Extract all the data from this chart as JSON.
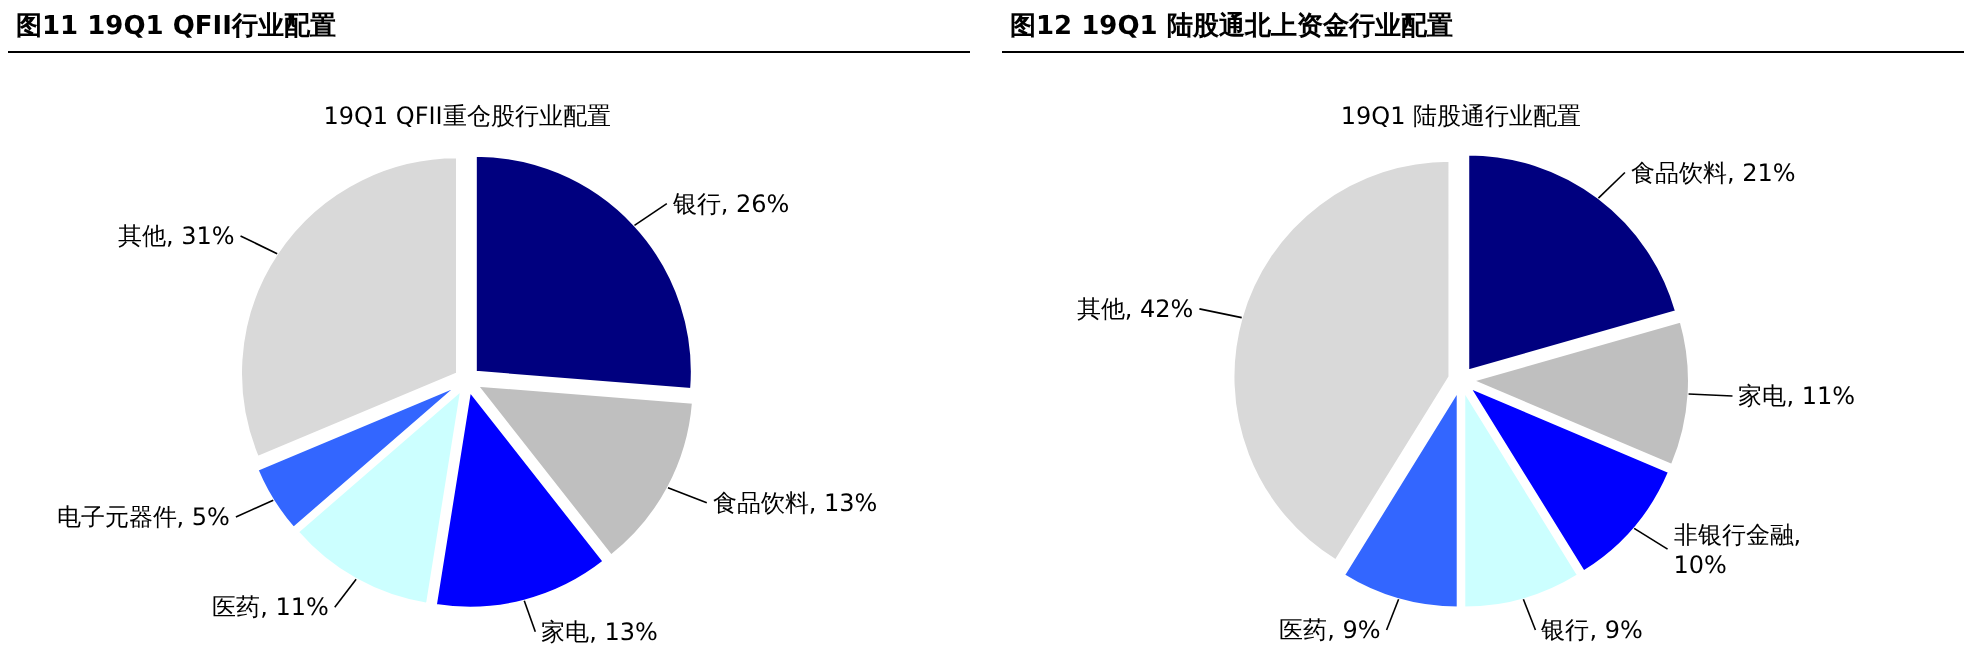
{
  "chart_data": [
    {
      "type": "pie",
      "title": "图11 19Q1 QFII行业配置",
      "subtitle": "19Q1 QFII重仓股行业配置",
      "categories": [
        "银行",
        "食品饮料",
        "家电",
        "医药",
        "电子元器件",
        "其他"
      ],
      "values": [
        26,
        13,
        13,
        11,
        5,
        31
      ],
      "value_labels": [
        ", 26%",
        ", 13%",
        ", 13%",
        ", 11%",
        ", 5%",
        ", 31%"
      ],
      "colors": [
        "#00007f",
        "#bfbfbf",
        "#0000ff",
        "#ccffff",
        "#3366ff",
        "#d9d9d9"
      ]
    },
    {
      "type": "pie",
      "title": "图12 19Q1  陆股通北上资金行业配置",
      "subtitle": "19Q1 陆股通行业配置",
      "categories": [
        "食品饮料",
        "家电",
        "非银行金融",
        "银行",
        "医药",
        "其他"
      ],
      "values": [
        21,
        11,
        10,
        9,
        9,
        42
      ],
      "value_labels": [
        ", 21%",
        ", 11%",
        ", 10%",
        ", 9%",
        ", 9%",
        ", 42%"
      ],
      "colors": [
        "#00007f",
        "#bfbfbf",
        "#0000ff",
        "#ccffff",
        "#3366ff",
        "#d9d9d9"
      ]
    }
  ]
}
